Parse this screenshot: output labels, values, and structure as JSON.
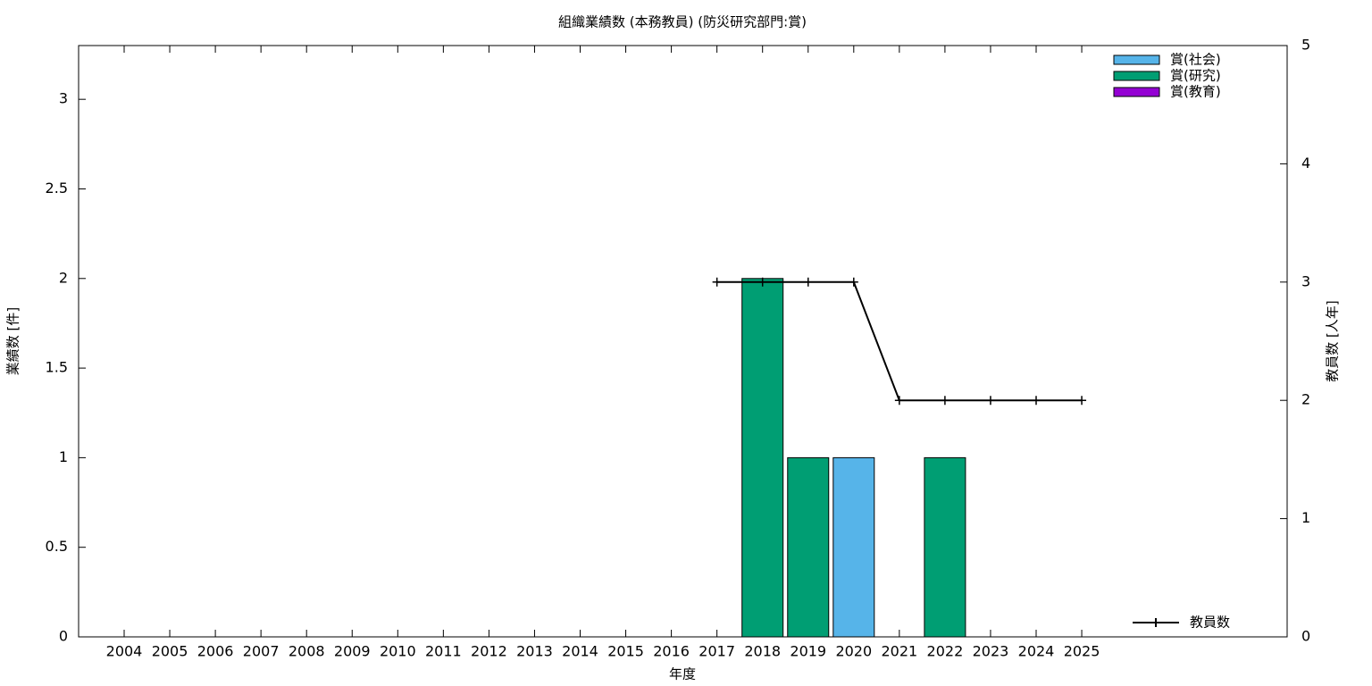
{
  "chart_data": {
    "type": "bar",
    "title": "組織業績数 (本務教員) (防災研究部門:賞)",
    "x_label": "年度",
    "y_label": "業績数 [件]",
    "y2_label": "教員数 [人年]",
    "categories": [
      "2004",
      "2005",
      "2006",
      "2007",
      "2008",
      "2009",
      "2010",
      "2011",
      "2012",
      "2013",
      "2014",
      "2015",
      "2016",
      "2017",
      "2018",
      "2019",
      "2020",
      "2021",
      "2022",
      "2023",
      "2024",
      "2025"
    ],
    "series": [
      {
        "name": "賞(社会)",
        "color": "#56b4e9",
        "values": [
          0,
          0,
          0,
          0,
          0,
          0,
          0,
          0,
          0,
          0,
          0,
          0,
          0,
          0,
          0,
          0,
          1,
          0,
          0,
          0,
          0,
          0
        ]
      },
      {
        "name": "賞(研究)",
        "color": "#009e73",
        "values": [
          0,
          0,
          0,
          0,
          0,
          0,
          0,
          0,
          0,
          0,
          0,
          0,
          0,
          0,
          2,
          1,
          0,
          0,
          1,
          0,
          0,
          0
        ]
      },
      {
        "name": "賞(教育)",
        "color": "#9400d3",
        "values": [
          0,
          0,
          0,
          0,
          0,
          0,
          0,
          0,
          0,
          0,
          0,
          0,
          0,
          0,
          0,
          0,
          0,
          0,
          0,
          0,
          0,
          0
        ]
      },
      {
        "name": "教員数",
        "type": "line",
        "axis": "y2",
        "color": "#000000",
        "values": [
          null,
          null,
          null,
          null,
          null,
          null,
          null,
          null,
          null,
          null,
          null,
          null,
          null,
          3,
          3,
          3,
          3,
          2,
          2,
          2,
          2,
          2
        ]
      }
    ],
    "ylim": [
      0,
      3.3
    ],
    "yticks": [
      0,
      0.5,
      1,
      1.5,
      2,
      2.5,
      3
    ],
    "y2lim": [
      0,
      5
    ],
    "y2ticks": [
      0,
      1,
      2,
      3,
      4,
      5
    ]
  }
}
